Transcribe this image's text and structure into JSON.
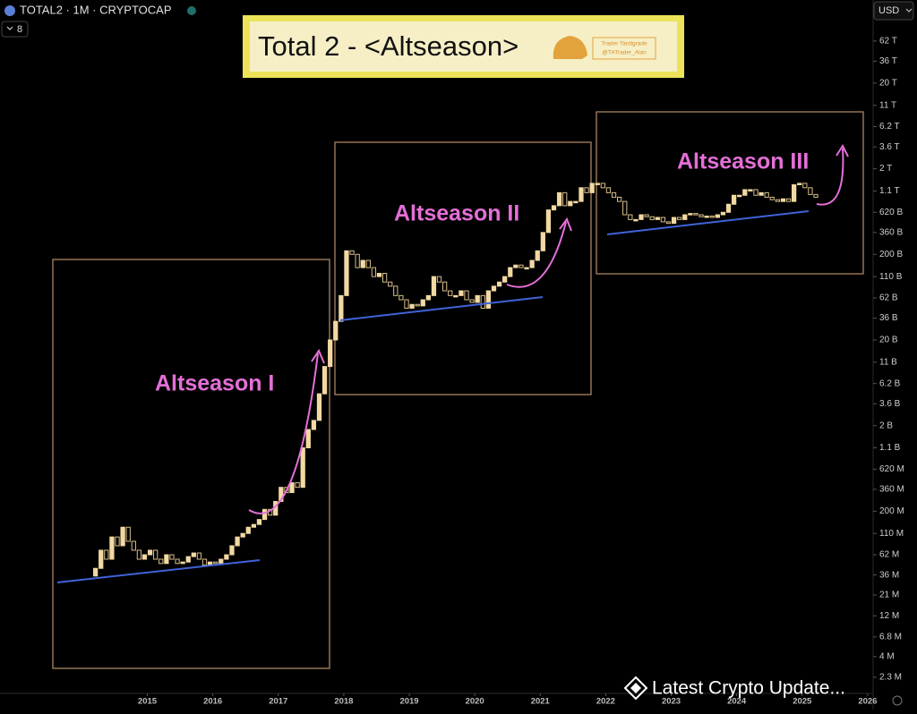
{
  "header": {
    "symbol": "TOTAL2 · 1M · CRYPTOCAP",
    "indicator_count": "8",
    "currency": "USD"
  },
  "banner": {
    "title": "Total 2 - <Altseason>",
    "brand": "Trader Tardigrade",
    "handle": "@TATrader_Alan"
  },
  "chart_data": {
    "type": "candlestick",
    "log": true,
    "up_color": "#f2d9a2",
    "down_color": "#d9bf8a",
    "annotations": [
      "Altseason I",
      "Altseason II",
      "Altseason III"
    ],
    "xlim": [
      "2012-10",
      "2026-02"
    ],
    "xticks": [
      "2015",
      "2016",
      "2017",
      "2018",
      "2019",
      "2020",
      "2021",
      "2022",
      "2023",
      "2024",
      "2025",
      "2026"
    ],
    "ylim": [
      1320000.0,
      187000000000000.0
    ],
    "yticks": [
      {
        "value": 62000000000000.0,
        "label": "62 T"
      },
      {
        "value": 36000000000000.0,
        "label": "36 T"
      },
      {
        "value": 20000000000000.0,
        "label": "20 T"
      },
      {
        "value": 11000000000000.0,
        "label": "11 T"
      },
      {
        "value": 6200000000000.0,
        "label": "6.2 T"
      },
      {
        "value": 3600000000000.0,
        "label": "3.6 T"
      },
      {
        "value": 2000000000000.0,
        "label": "2 T"
      },
      {
        "value": 1100000000000.0,
        "label": "1.1 T"
      },
      {
        "value": 620000000000.0,
        "label": "620 B"
      },
      {
        "value": 360000000000.0,
        "label": "360 B"
      },
      {
        "value": 200000000000.0,
        "label": "200 B"
      },
      {
        "value": 110000000000.0,
        "label": "110 B"
      },
      {
        "value": 62000000000.0,
        "label": "62 B"
      },
      {
        "value": 36000000000.0,
        "label": "36 B"
      },
      {
        "value": 20000000000.0,
        "label": "20 B"
      },
      {
        "value": 11000000000.0,
        "label": "11 B"
      },
      {
        "value": 6200000000.0,
        "label": "6.2 B"
      },
      {
        "value": 3600000000.0,
        "label": "3.6 B"
      },
      {
        "value": 2000000000.0,
        "label": "2 B"
      },
      {
        "value": 1100000000.0,
        "label": "1.1 B"
      },
      {
        "value": 620000000.0,
        "label": "620 M"
      },
      {
        "value": 360000000.0,
        "label": "360 M"
      },
      {
        "value": 200000000.0,
        "label": "200 M"
      },
      {
        "value": 110000000.0,
        "label": "110 M"
      },
      {
        "value": 62000000.0,
        "label": "62 M"
      },
      {
        "value": 36000000.0,
        "label": "36 M"
      },
      {
        "value": 21000000.0,
        "label": "21 M"
      },
      {
        "value": 12000000.0,
        "label": "12 M"
      },
      {
        "value": 6800000.0,
        "label": "6.8 M"
      },
      {
        "value": 4000000.0,
        "label": "4 M"
      },
      {
        "value": 2300000.0,
        "label": "2.3 M"
      }
    ],
    "x": [
      "2014-03",
      "2014-04",
      "2014-05",
      "2014-06",
      "2014-07",
      "2014-08",
      "2014-09",
      "2014-10",
      "2014-11",
      "2014-12",
      "2015-01",
      "2015-02",
      "2015-03",
      "2015-04",
      "2015-05",
      "2015-06",
      "2015-07",
      "2015-08",
      "2015-09",
      "2015-10",
      "2015-11",
      "2015-12",
      "2016-01",
      "2016-02",
      "2016-03",
      "2016-04",
      "2016-05",
      "2016-06",
      "2016-07",
      "2016-08",
      "2016-09",
      "2016-10",
      "2016-11",
      "2016-12",
      "2017-01",
      "2017-02",
      "2017-03",
      "2017-04",
      "2017-05",
      "2017-06",
      "2017-07",
      "2017-08",
      "2017-09",
      "2017-10",
      "2017-11",
      "2017-12",
      "2018-01",
      "2018-02",
      "2018-03",
      "2018-04",
      "2018-05",
      "2018-06",
      "2018-07",
      "2018-08",
      "2018-09",
      "2018-10",
      "2018-11",
      "2018-12",
      "2019-01",
      "2019-02",
      "2019-03",
      "2019-04",
      "2019-05",
      "2019-06",
      "2019-07",
      "2019-08",
      "2019-09",
      "2019-10",
      "2019-11",
      "2019-12",
      "2020-01",
      "2020-02",
      "2020-03",
      "2020-04",
      "2020-05",
      "2020-06",
      "2020-07",
      "2020-08",
      "2020-09",
      "2020-10",
      "2020-11",
      "2020-12",
      "2021-01",
      "2021-02",
      "2021-03",
      "2021-04",
      "2021-05",
      "2021-06",
      "2021-07",
      "2021-08",
      "2021-09",
      "2021-10",
      "2021-11",
      "2021-12",
      "2022-01",
      "2022-02",
      "2022-03",
      "2022-04",
      "2022-05",
      "2022-06",
      "2022-07",
      "2022-08",
      "2022-09",
      "2022-10",
      "2022-11",
      "2022-12",
      "2023-01",
      "2023-02",
      "2023-03",
      "2023-04",
      "2023-05",
      "2023-06",
      "2023-07",
      "2023-08",
      "2023-09",
      "2023-10",
      "2023-11",
      "2023-12",
      "2024-01",
      "2024-02",
      "2024-03",
      "2024-04",
      "2024-05",
      "2024-06",
      "2024-07",
      "2024-08",
      "2024-09",
      "2024-10",
      "2024-11",
      "2024-12",
      "2025-01",
      "2025-02",
      "2025-03"
    ],
    "open": [
      35000000.0,
      43000000.0,
      70000000.0,
      55000000.0,
      100000000.0,
      79000000.0,
      130000000.0,
      89000000.0,
      70000000.0,
      55000000.0,
      62000000.0,
      70000000.0,
      55000000.0,
      49000000.0,
      62000000.0,
      55000000.0,
      49000000.0,
      51000000.0,
      59000000.0,
      65000000.0,
      55000000.0,
      47000000.0,
      51000000.0,
      49000000.0,
      55000000.0,
      62000000.0,
      79000000.0,
      100000000.0,
      110000000.0,
      130000000.0,
      140000000.0,
      160000000.0,
      210000000.0,
      180000000.0,
      260000000.0,
      380000000.0,
      330000000.0,
      430000000.0,
      380000000.0,
      1100000000.0,
      1800000000.0,
      2300000000.0,
      4700000000.0,
      9800000000.0,
      20000000000.0,
      33000000000.0,
      66000000000.0,
      220000000000.0,
      200000000000.0,
      140000000000.0,
      170000000000.0,
      140000000000.0,
      110000000000.0,
      120000000000.0,
      95000000000.0,
      85000000000.0,
      66000000000.0,
      59000000000.0,
      47000000000.0,
      52000000000.0,
      50000000000.0,
      59000000000.0,
      66000000000.0,
      110000000000.0,
      95000000000.0,
      75000000000.0,
      66000000000.0,
      66000000000.0,
      75000000000.0,
      59000000000.0,
      55000000000.0,
      66000000000.0,
      47000000000.0,
      75000000000.0,
      85000000000.0,
      95000000000.0,
      110000000000.0,
      140000000000.0,
      150000000000.0,
      140000000000.0,
      140000000000.0,
      170000000000.0,
      220000000000.0,
      360000000000.0,
      660000000000.0,
      740000000000.0,
      1050000000000.0,
      740000000000.0,
      830000000000.0,
      830000000000.0,
      1200000000000.0,
      1050000000000.0,
      1350000000000.0,
      1350000000000.0,
      1200000000000.0,
      1050000000000.0,
      930000000000.0,
      830000000000.0,
      580000000000.0,
      510000000000.0,
      510000000000.0,
      580000000000.0,
      550000000000.0,
      510000000000.0,
      540000000000.0,
      480000000000.0,
      460000000000.0,
      540000000000.0,
      510000000000.0,
      580000000000.0,
      600000000000.0,
      580000000000.0,
      550000000000.0,
      560000000000.0,
      540000000000.0,
      580000000000.0,
      620000000000.0,
      770000000000.0,
      980000000000.0,
      980000000000.0,
      1140000000000.0,
      1140000000000.0,
      980000000000.0,
      1050000000000.0,
      930000000000.0,
      870000000000.0,
      830000000000.0,
      890000000000.0,
      830000000000.0,
      1300000000000.0,
      1350000000000.0,
      1200000000000.0,
      1000000000000.0
    ],
    "close": [
      43000000.0,
      70000000.0,
      55000000.0,
      100000000.0,
      79000000.0,
      130000000.0,
      89000000.0,
      70000000.0,
      55000000.0,
      62000000.0,
      70000000.0,
      55000000.0,
      49000000.0,
      62000000.0,
      55000000.0,
      49000000.0,
      51000000.0,
      59000000.0,
      65000000.0,
      55000000.0,
      47000000.0,
      51000000.0,
      49000000.0,
      55000000.0,
      62000000.0,
      79000000.0,
      100000000.0,
      110000000.0,
      130000000.0,
      140000000.0,
      160000000.0,
      210000000.0,
      180000000.0,
      260000000.0,
      380000000.0,
      330000000.0,
      430000000.0,
      380000000.0,
      1100000000.0,
      1800000000.0,
      2300000000.0,
      4700000000.0,
      9800000000.0,
      20000000000.0,
      33000000000.0,
      66000000000.0,
      220000000000.0,
      200000000000.0,
      140000000000.0,
      170000000000.0,
      140000000000.0,
      110000000000.0,
      120000000000.0,
      95000000000.0,
      85000000000.0,
      66000000000.0,
      59000000000.0,
      47000000000.0,
      52000000000.0,
      50000000000.0,
      59000000000.0,
      66000000000.0,
      110000000000.0,
      95000000000.0,
      75000000000.0,
      66000000000.0,
      66000000000.0,
      75000000000.0,
      59000000000.0,
      55000000000.0,
      66000000000.0,
      47000000000.0,
      75000000000.0,
      85000000000.0,
      95000000000.0,
      110000000000.0,
      140000000000.0,
      150000000000.0,
      140000000000.0,
      140000000000.0,
      170000000000.0,
      220000000000.0,
      360000000000.0,
      660000000000.0,
      740000000000.0,
      1050000000000.0,
      740000000000.0,
      830000000000.0,
      830000000000.0,
      1200000000000.0,
      1050000000000.0,
      1350000000000.0,
      1350000000000.0,
      1200000000000.0,
      1050000000000.0,
      930000000000.0,
      830000000000.0,
      580000000000.0,
      510000000000.0,
      510000000000.0,
      580000000000.0,
      550000000000.0,
      510000000000.0,
      540000000000.0,
      480000000000.0,
      460000000000.0,
      540000000000.0,
      510000000000.0,
      580000000000.0,
      600000000000.0,
      580000000000.0,
      550000000000.0,
      560000000000.0,
      540000000000.0,
      580000000000.0,
      620000000000.0,
      770000000000.0,
      980000000000.0,
      980000000000.0,
      1140000000000.0,
      1140000000000.0,
      980000000000.0,
      1050000000000.0,
      930000000000.0,
      870000000000.0,
      830000000000.0,
      890000000000.0,
      830000000000.0,
      1300000000000.0,
      1350000000000.0,
      1200000000000.0,
      1000000000000.0,
      930000000000.0
    ]
  },
  "watermark": "Latest Crypto Update..."
}
